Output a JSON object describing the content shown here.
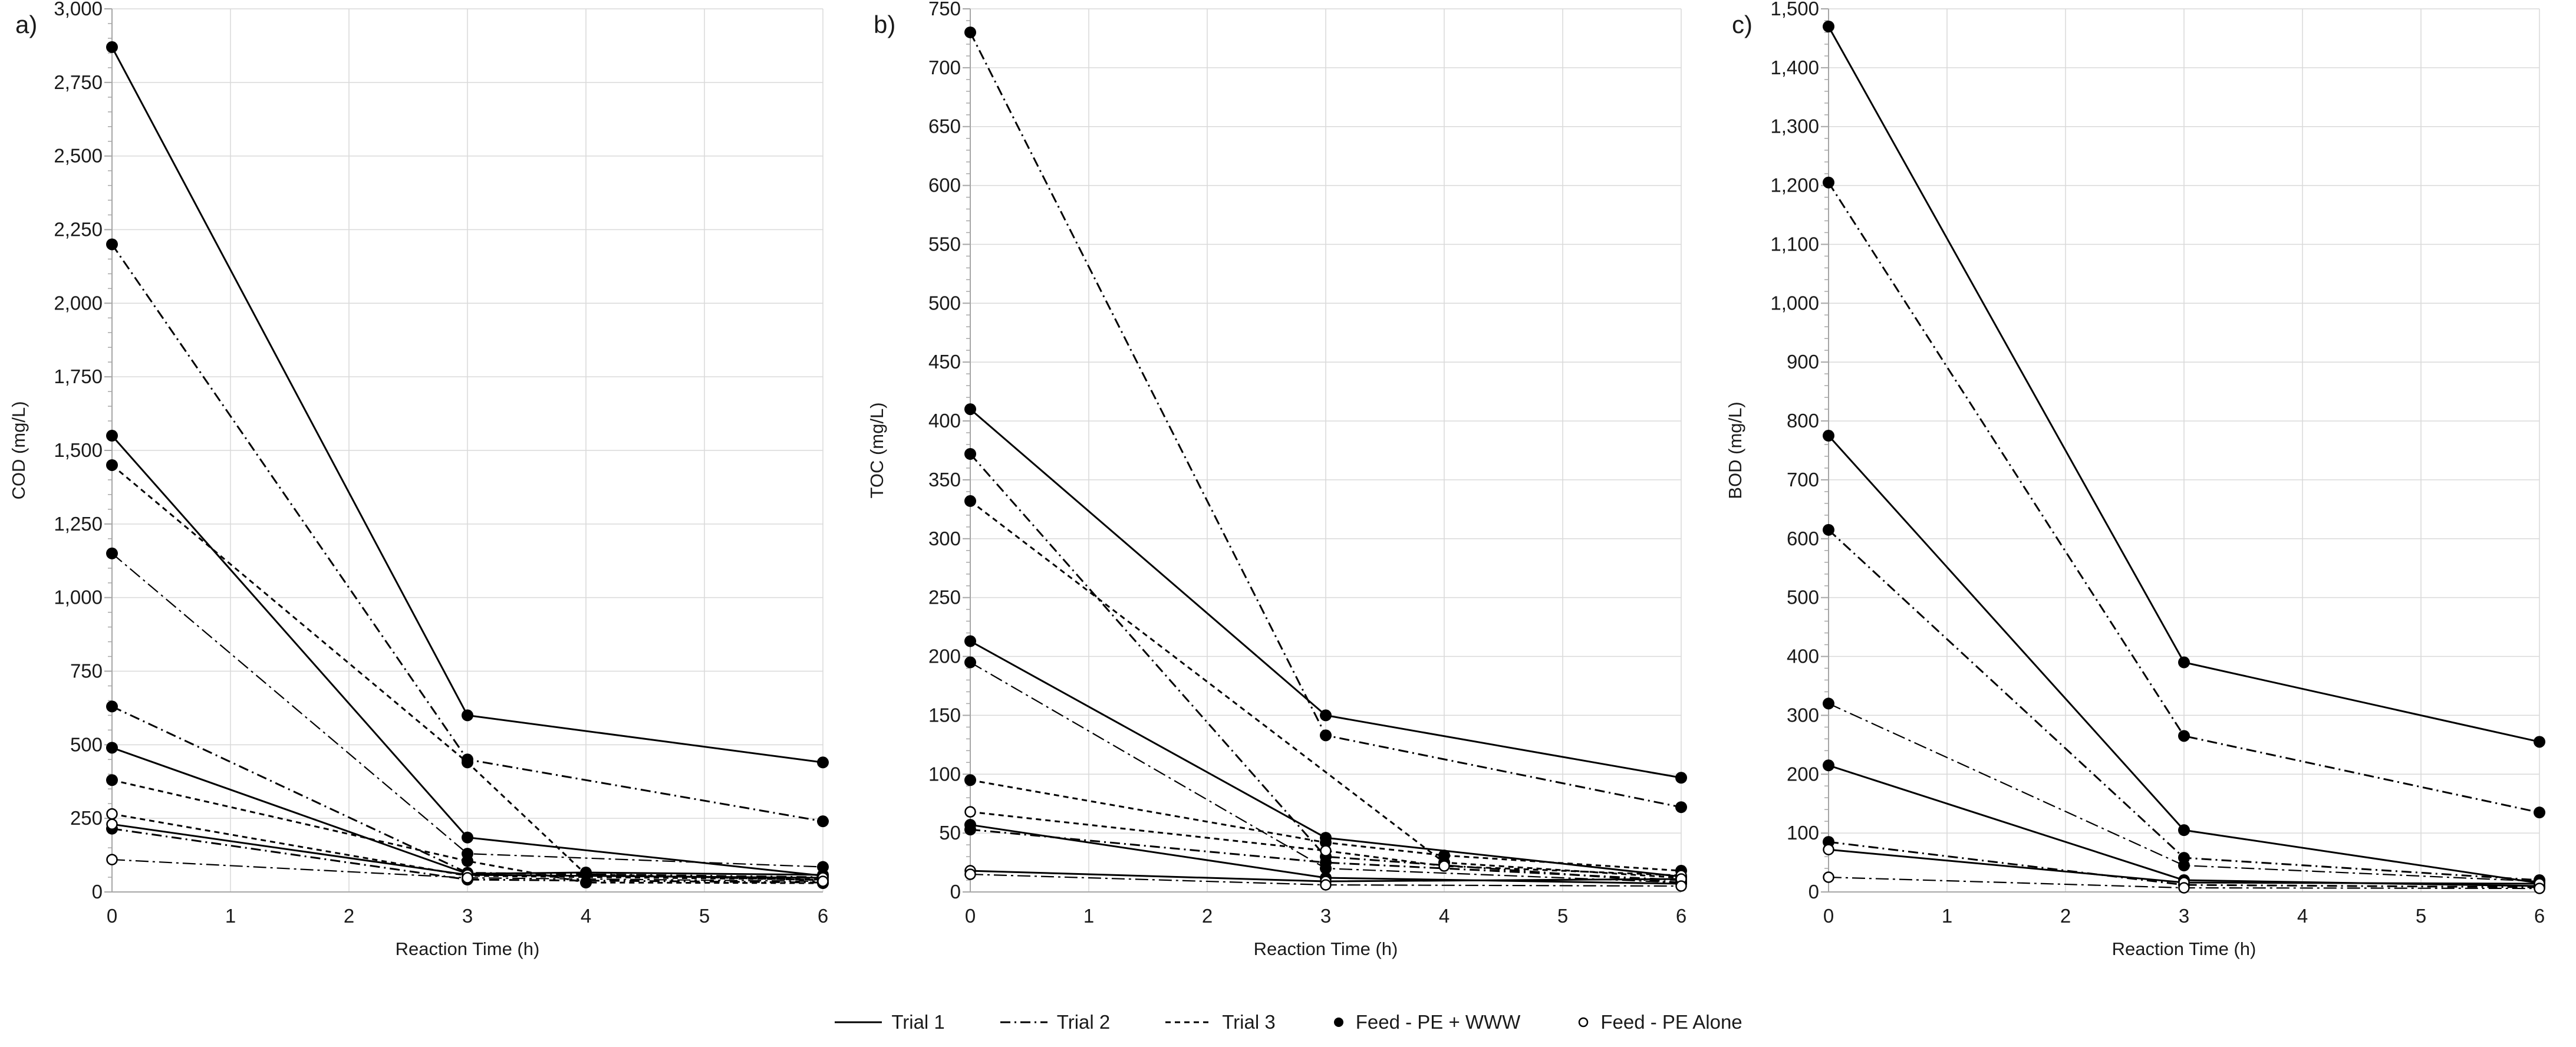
{
  "colors": {
    "grid": "#d9d9d9",
    "axis": "#a6a6a6",
    "series": "#000000",
    "text": "#1a1a1a"
  },
  "legend": {
    "items": [
      {
        "swatch": "line-solid",
        "label": "Trial 1"
      },
      {
        "swatch": "line-dashdot",
        "label": "Trial 2"
      },
      {
        "swatch": "line-dashed",
        "label": "Trial 3"
      },
      {
        "swatch": "marker-filled",
        "label": "Feed - PE + WWW"
      },
      {
        "swatch": "marker-open",
        "label": "Feed - PE Alone"
      }
    ]
  },
  "chart_data": [
    {
      "type": "line",
      "panel_label": "a)",
      "ylabel": "COD (mg/L)",
      "xlabel": "Reaction Time (h)",
      "ylim": [
        0,
        3000
      ],
      "ytick_step": 250,
      "yminor_step": 50,
      "ytick_labels": [
        "0",
        "250",
        "500",
        "750",
        "1,000",
        "1,250",
        "1,500",
        "1,750",
        "2,000",
        "2,250",
        "2,500",
        "2,750",
        "3,000"
      ],
      "xlim": [
        0,
        6
      ],
      "xtick_labels": [
        "0",
        "1",
        "2",
        "3",
        "4",
        "5",
        "6"
      ],
      "grid": true,
      "series": [
        {
          "style": "solid",
          "marker": "filled",
          "points": [
            [
              0,
              2870
            ],
            [
              3,
              600
            ],
            [
              6,
              440
            ]
          ]
        },
        {
          "style": "dashdot",
          "marker": "filled",
          "points": [
            [
              0,
              2200
            ],
            [
              3,
              450
            ],
            [
              6,
              240
            ]
          ]
        },
        {
          "style": "solid",
          "marker": "filled",
          "points": [
            [
              0,
              1550
            ],
            [
              3,
              185
            ],
            [
              6,
              55
            ]
          ]
        },
        {
          "style": "dashed",
          "marker": "filled",
          "points": [
            [
              0,
              1450
            ],
            [
              3,
              440
            ],
            [
              4,
              60
            ],
            [
              6,
              40
            ]
          ]
        },
        {
          "style": "dashdotlight",
          "marker": "filled",
          "points": [
            [
              0,
              1150
            ],
            [
              3,
              130
            ],
            [
              6,
              85
            ]
          ]
        },
        {
          "style": "dashdot",
          "marker": "filled",
          "points": [
            [
              0,
              630
            ],
            [
              3,
              65
            ],
            [
              6,
              50
            ]
          ]
        },
        {
          "style": "solid",
          "marker": "filled",
          "points": [
            [
              0,
              490
            ],
            [
              3,
              62
            ],
            [
              4,
              66
            ],
            [
              6,
              58
            ]
          ]
        },
        {
          "style": "dashed",
          "marker": "filled",
          "points": [
            [
              0,
              380
            ],
            [
              3,
              105
            ],
            [
              4,
              32
            ],
            [
              6,
              30
            ]
          ]
        },
        {
          "style": "dashdot",
          "marker": "filled",
          "points": [
            [
              0,
              215
            ],
            [
              3,
              42
            ],
            [
              6,
              32
            ]
          ]
        },
        {
          "style": "dashed",
          "marker": "open",
          "points": [
            [
              0,
              265
            ],
            [
              3,
              55
            ],
            [
              6,
              42
            ]
          ]
        },
        {
          "style": "solid",
          "marker": "open",
          "points": [
            [
              0,
              230
            ],
            [
              3,
              58
            ],
            [
              6,
              48
            ]
          ]
        },
        {
          "style": "dashdotlight",
          "marker": "open",
          "points": [
            [
              0,
              110
            ],
            [
              3,
              48
            ],
            [
              6,
              36
            ]
          ]
        }
      ]
    },
    {
      "type": "line",
      "panel_label": "b)",
      "ylabel": "TOC (mg/L)",
      "xlabel": "Reaction Time (h)",
      "ylim": [
        0,
        750
      ],
      "ytick_step": 50,
      "yminor_step": 10,
      "ytick_labels": [
        "0",
        "50",
        "100",
        "150",
        "200",
        "250",
        "300",
        "350",
        "400",
        "450",
        "500",
        "550",
        "600",
        "650",
        "700",
        "750"
      ],
      "xlim": [
        0,
        6
      ],
      "xtick_labels": [
        "0",
        "1",
        "2",
        "3",
        "4",
        "5",
        "6"
      ],
      "grid": true,
      "series": [
        {
          "style": "dashdot",
          "marker": "filled",
          "points": [
            [
              0,
              730
            ],
            [
              3,
              133
            ],
            [
              6,
              72
            ]
          ]
        },
        {
          "style": "solid",
          "marker": "filled",
          "points": [
            [
              0,
              410
            ],
            [
              3,
              150
            ],
            [
              6,
              97
            ]
          ]
        },
        {
          "style": "dashdot",
          "marker": "filled",
          "points": [
            [
              0,
              372
            ],
            [
              3,
              30
            ],
            [
              6,
              8
            ]
          ]
        },
        {
          "style": "dashed",
          "marker": "filled",
          "points": [
            [
              0,
              332
            ],
            [
              4,
              25
            ],
            [
              6,
              12
            ]
          ]
        },
        {
          "style": "solid",
          "marker": "filled",
          "points": [
            [
              0,
              213
            ],
            [
              3,
              46
            ],
            [
              6,
              13
            ]
          ]
        },
        {
          "style": "dashdotlight",
          "marker": "filled",
          "points": [
            [
              0,
              195
            ],
            [
              3,
              20
            ],
            [
              6,
              8
            ]
          ]
        },
        {
          "style": "dashed",
          "marker": "filled",
          "points": [
            [
              0,
              95
            ],
            [
              3,
              42
            ],
            [
              4,
              31
            ],
            [
              6,
              18
            ]
          ]
        },
        {
          "style": "dashed",
          "marker": "open",
          "points": [
            [
              0,
              68
            ],
            [
              3,
              35
            ],
            [
              4,
              22
            ],
            [
              6,
              14
            ]
          ]
        },
        {
          "style": "solid",
          "marker": "filled",
          "points": [
            [
              0,
              57
            ],
            [
              3,
              12
            ],
            [
              6,
              7
            ]
          ]
        },
        {
          "style": "dashdot",
          "marker": "filled",
          "points": [
            [
              0,
              53
            ],
            [
              3,
              25
            ],
            [
              6,
              10
            ]
          ]
        },
        {
          "style": "solid",
          "marker": "open",
          "points": [
            [
              0,
              18
            ],
            [
              3,
              9
            ],
            [
              6,
              11
            ]
          ]
        },
        {
          "style": "dashdotlight",
          "marker": "open",
          "points": [
            [
              0,
              15
            ],
            [
              3,
              6
            ],
            [
              6,
              5
            ]
          ]
        }
      ]
    },
    {
      "type": "line",
      "panel_label": "c)",
      "ylabel": "BOD (mg/L)",
      "xlabel": "Reaction Time (h)",
      "ylim": [
        0,
        1500
      ],
      "ytick_step": 100,
      "yminor_step": 20,
      "ytick_labels": [
        "0",
        "100",
        "200",
        "300",
        "400",
        "500",
        "600",
        "700",
        "800",
        "900",
        "1,000",
        "1,100",
        "1,200",
        "1,300",
        "1,400",
        "1,500"
      ],
      "xlim": [
        0,
        6
      ],
      "xtick_labels": [
        "0",
        "1",
        "2",
        "3",
        "4",
        "5",
        "6"
      ],
      "grid": true,
      "series": [
        {
          "style": "solid",
          "marker": "filled",
          "points": [
            [
              0,
              1470
            ],
            [
              3,
              390
            ],
            [
              6,
              255
            ]
          ]
        },
        {
          "style": "dashdot",
          "marker": "filled",
          "points": [
            [
              0,
              1205
            ],
            [
              3,
              265
            ],
            [
              6,
              135
            ]
          ]
        },
        {
          "style": "solid",
          "marker": "filled",
          "points": [
            [
              0,
              775
            ],
            [
              3,
              105
            ],
            [
              6,
              15
            ]
          ]
        },
        {
          "style": "dashdot",
          "marker": "filled",
          "points": [
            [
              0,
              615
            ],
            [
              3,
              58
            ],
            [
              6,
              20
            ]
          ]
        },
        {
          "style": "dashdotlight",
          "marker": "filled",
          "points": [
            [
              0,
              320
            ],
            [
              3,
              45
            ],
            [
              6,
              18
            ]
          ]
        },
        {
          "style": "solid",
          "marker": "filled",
          "points": [
            [
              0,
              215
            ],
            [
              3,
              20
            ],
            [
              6,
              10
            ]
          ]
        },
        {
          "style": "dashdot",
          "marker": "filled",
          "points": [
            [
              0,
              85
            ],
            [
              3,
              12
            ],
            [
              6,
              8
            ]
          ]
        },
        {
          "style": "solid",
          "marker": "open",
          "points": [
            [
              0,
              72
            ],
            [
              3,
              16
            ],
            [
              6,
              14
            ]
          ]
        },
        {
          "style": "dashdotlight",
          "marker": "open",
          "points": [
            [
              0,
              25
            ],
            [
              3,
              7
            ],
            [
              6,
              6
            ]
          ]
        }
      ]
    }
  ]
}
